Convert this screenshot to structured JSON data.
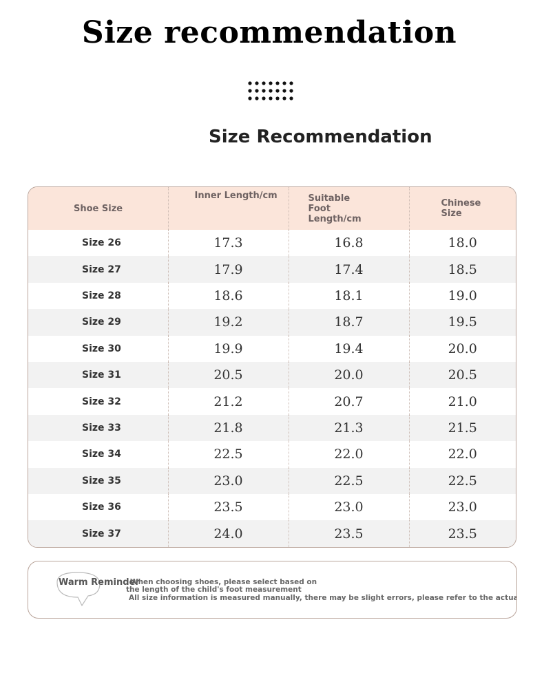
{
  "header": {
    "title": "Size recommendation",
    "subtitle": "Size Recommendation"
  },
  "table": {
    "columns": [
      "Shoe Size",
      "Inner Length/cm",
      "Suitable Foot Length/cm",
      "Chinese Size"
    ],
    "rows": [
      [
        "Size 26",
        "17.3",
        "16.8",
        "18.0"
      ],
      [
        "Size 27",
        "17.9",
        "17.4",
        "18.5"
      ],
      [
        "Size 28",
        "18.6",
        "18.1",
        "19.0"
      ],
      [
        "Size 29",
        "19.2",
        "18.7",
        "19.5"
      ],
      [
        "Size 30",
        "19.9",
        "19.4",
        "20.0"
      ],
      [
        "Size 31",
        "20.5",
        "20.0",
        "20.5"
      ],
      [
        "Size 32",
        "21.2",
        "20.7",
        "21.0"
      ],
      [
        "Size 33",
        "21.8",
        "21.3",
        "21.5"
      ],
      [
        "Size 34",
        "22.5",
        "22.0",
        "22.0"
      ],
      [
        "Size 35",
        "23.0",
        "22.5",
        "22.5"
      ],
      [
        "Size 36",
        "23.5",
        "23.0",
        "23.0"
      ],
      [
        "Size 37",
        "24.0",
        "23.5",
        "23.5"
      ]
    ]
  },
  "reminder": {
    "title": "Warm Reminder",
    "lines": [
      "When choosing shoes, please select based on",
      "the length of the child's foot measurement",
      "All size information is measured manually, there may be slight errors, please refer to the actual product"
    ]
  }
}
